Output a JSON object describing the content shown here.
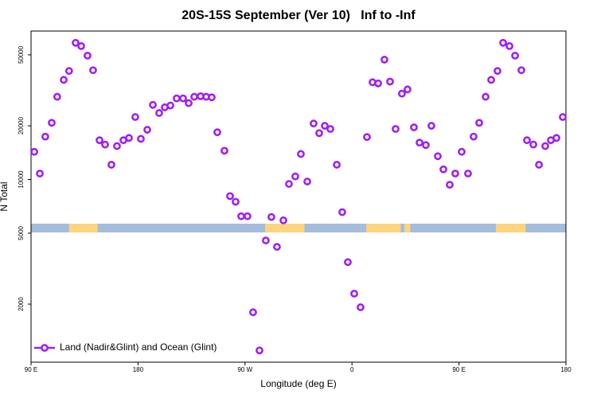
{
  "chart_data": {
    "type": "scatter",
    "title": "20S-15S September (Ver 10)   Inf to -Inf",
    "xlabel": "Longitude (deg E)",
    "ylabel": "N Total",
    "xlim": [
      90,
      540
    ],
    "ylim": [
      945,
      68000
    ],
    "log_y": true,
    "xticks": [
      {
        "value": 90,
        "label": "90 E"
      },
      180,
      {
        "value": 270,
        "label": "90 W"
      },
      {
        "value": 360,
        "label": "0"
      },
      {
        "value": 450,
        "label": "90 E"
      },
      {
        "value": 540,
        "label": "180"
      }
    ],
    "yticks": [
      2000,
      5000,
      10000,
      20000,
      50000
    ],
    "legend": "bottom left",
    "series": [
      {
        "name": "Land (Nadir&Glint) and Ocean (Glint)",
        "color": "#a020f0",
        "x": [
          92.7,
          97.4,
          102,
          107.4,
          112,
          117.5,
          122,
          127.5,
          132.2,
          137.5,
          142.2,
          147.6,
          152.3,
          157.6,
          162.3,
          167.7,
          172.4,
          177.7,
          182.4,
          187.8,
          192.5,
          197.8,
          202.5,
          207.2,
          212.5,
          217.9,
          222.6,
          227.3,
          232.6,
          237.3,
          242,
          246.7,
          252.7,
          257.4,
          262.1,
          266.8,
          272.1,
          276.8,
          282.2,
          287.5,
          292.2,
          296.9,
          302.3,
          307,
          312.3,
          317,
          322.4,
          327.7,
          332.4,
          337.1,
          341.8,
          347.2,
          351.8,
          356.5,
          361.9,
          367.2,
          372.6,
          377.3,
          382,
          387.3,
          392,
          396.7,
          402,
          406.7,
          412.1,
          416.8,
          422.1,
          426.8,
          432.2,
          436.9,
          442.2,
          446.9,
          452.3,
          457.6,
          462.3,
          467,
          472.4,
          477.1,
          482.4,
          487.1,
          492.5,
          497.2,
          502.5,
          507.2,
          512.6,
          517.3,
          522.6,
          527.3,
          532,
          537.3
        ],
        "values": [
          14300,
          10800,
          17400,
          20800,
          29100,
          36200,
          40600,
          58400,
          56000,
          49500,
          41000,
          16600,
          15700,
          12100,
          15400,
          16600,
          17100,
          22400,
          16900,
          19000,
          26200,
          23600,
          25400,
          26000,
          28500,
          28500,
          26800,
          29100,
          29300,
          29100,
          28900,
          18400,
          14500,
          8070,
          7500,
          6220,
          6220,
          1800,
          1100,
          4550,
          6160,
          4190,
          5900,
          9440,
          10400,
          13900,
          9740,
          20600,
          18200,
          20000,
          19200,
          12100,
          6560,
          3440,
          2290,
          1920,
          17300,
          35100,
          34600,
          47000,
          35400,
          19200,
          30300,
          32000,
          19600,
          16100,
          15600,
          20000,
          13500,
          11400,
          9340,
          10800,
          14300,
          10800,
          17400,
          20800,
          29100,
          36200,
          40600,
          58400,
          56000,
          49500,
          41000,
          16600,
          15700,
          12100,
          15400,
          16600,
          17100,
          22400
        ]
      }
    ],
    "ocean_color": "#a5bcdb",
    "land_color": "#ffd47f",
    "land_spans": [
      [
        122,
        146
      ],
      [
        287,
        320
      ],
      [
        372,
        401
      ],
      [
        404,
        409
      ],
      [
        481,
        506
      ]
    ]
  }
}
